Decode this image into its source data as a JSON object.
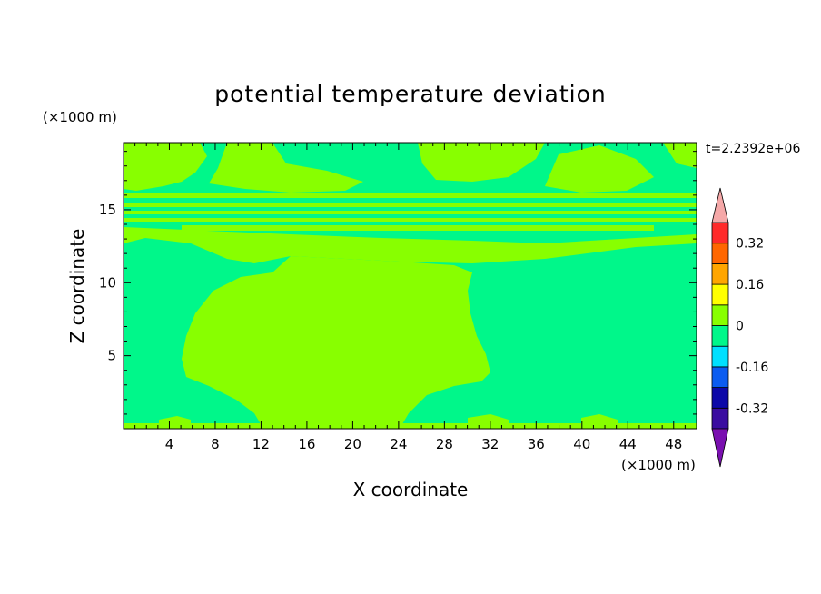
{
  "chart_data": {
    "type": "heatmap",
    "title": "potential temperature deviation",
    "xlabel": "X coordinate",
    "ylabel": "Z coordinate",
    "x_unit": "(×1000 m)",
    "y_unit": "(×1000 m)",
    "time_label": "t=2.2392e+06",
    "xlim": [
      0,
      50
    ],
    "ylim": [
      0,
      19.6
    ],
    "x_ticks": [
      4,
      8,
      12,
      16,
      20,
      24,
      28,
      32,
      36,
      40,
      44,
      48
    ],
    "y_ticks": [
      5,
      10,
      15
    ],
    "x_tick_labels": [
      "4",
      "8",
      "12",
      "16",
      "20",
      "24",
      "28",
      "32",
      "36",
      "40",
      "44",
      "48"
    ],
    "y_tick_labels": [
      "5",
      "10",
      "15"
    ],
    "colorbar": {
      "levels": [
        -0.4,
        -0.32,
        -0.24,
        -0.16,
        -0.08,
        0,
        0.08,
        0.16,
        0.24,
        0.32,
        0.4
      ],
      "colors": [
        "#3a0ca0",
        "#0c08a8",
        "#0b5cf0",
        "#00e0ff",
        "#00f78a",
        "#88ff00",
        "#ffff00",
        "#ffa500",
        "#ff6600",
        "#ff2a2a"
      ],
      "under_color": "#7a10b0",
      "over_color": "#f5a8a8",
      "tick_labels": [
        "0.32",
        "0.16",
        "0",
        "-0.16",
        "-0.32"
      ],
      "tick_values": [
        0.32,
        0.16,
        0,
        -0.16,
        -0.32
      ]
    },
    "regions": {
      "background_value_color": "#00f78a",
      "positive_value_color": "#88ff00",
      "description_levels": [
        -0.08,
        0,
        0.08
      ]
    }
  }
}
